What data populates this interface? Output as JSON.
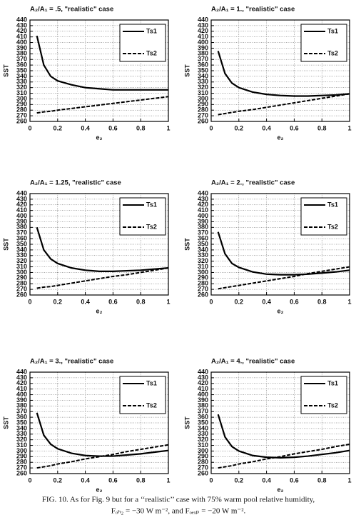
{
  "chart_data": [
    {
      "type": "line",
      "title": "A₂/A₁ = .5, \"realistic\" case",
      "xlabel": "e₂",
      "ylabel": "SST",
      "x": [
        0.05,
        0.1,
        0.15,
        0.2,
        0.3,
        0.4,
        0.5,
        0.6,
        0.7,
        0.8,
        0.9,
        1
      ],
      "series": [
        {
          "name": "Ts1",
          "color": "#000000",
          "dash": false,
          "values": [
            412,
            360,
            340,
            332,
            325,
            320,
            318,
            316,
            316,
            316,
            316,
            316
          ]
        },
        {
          "name": "Ts2",
          "color": "#000000",
          "dash": true,
          "values": [
            275,
            277,
            278,
            280,
            283,
            286,
            289,
            292,
            295,
            298,
            301,
            304
          ]
        }
      ],
      "xlim": [
        0,
        1
      ],
      "xticks": [
        0,
        0.2,
        0.4,
        0.6,
        0.8,
        1
      ],
      "ylim": [
        260,
        440
      ],
      "yticks": [
        260,
        270,
        280,
        290,
        300,
        310,
        320,
        330,
        340,
        350,
        360,
        370,
        380,
        390,
        400,
        410,
        420,
        430,
        440
      ],
      "grid": true,
      "legend": "upper right"
    },
    {
      "type": "line",
      "title": "A₂/A₁ = 1., \"realistic\" case",
      "xlabel": "e₂",
      "ylabel": "SST",
      "x": [
        0.05,
        0.1,
        0.15,
        0.2,
        0.3,
        0.4,
        0.5,
        0.6,
        0.7,
        0.8,
        0.9,
        1
      ],
      "series": [
        {
          "name": "Ts1",
          "color": "#000000",
          "dash": false,
          "values": [
            385,
            345,
            328,
            320,
            312,
            308,
            306,
            305,
            305,
            306,
            307,
            309
          ]
        },
        {
          "name": "Ts2",
          "color": "#000000",
          "dash": true,
          "values": [
            272,
            274,
            276,
            278,
            281,
            285,
            289,
            293,
            297,
            301,
            305,
            309
          ]
        }
      ],
      "xlim": [
        0,
        1
      ],
      "xticks": [
        0,
        0.2,
        0.4,
        0.6,
        0.8,
        1
      ],
      "ylim": [
        260,
        440
      ],
      "yticks": [
        260,
        270,
        280,
        290,
        300,
        310,
        320,
        330,
        340,
        350,
        360,
        370,
        380,
        390,
        400,
        410,
        420,
        430,
        440
      ],
      "grid": true,
      "legend": "upper right"
    },
    {
      "type": "line",
      "title": "A₂/A₁ = 1.25, \"realistic\" case",
      "xlabel": "e₂",
      "ylabel": "SST",
      "x": [
        0.05,
        0.1,
        0.15,
        0.2,
        0.3,
        0.4,
        0.5,
        0.6,
        0.7,
        0.8,
        0.9,
        1
      ],
      "series": [
        {
          "name": "Ts1",
          "color": "#000000",
          "dash": false,
          "values": [
            380,
            340,
            324,
            316,
            308,
            304,
            302,
            302,
            303,
            304,
            306,
            308
          ]
        },
        {
          "name": "Ts2",
          "color": "#000000",
          "dash": true,
          "values": [
            272,
            274,
            275,
            277,
            281,
            285,
            289,
            293,
            296,
            300,
            304,
            308
          ]
        }
      ],
      "xlim": [
        0,
        1
      ],
      "xticks": [
        0,
        0.2,
        0.4,
        0.6,
        0.8,
        1
      ],
      "ylim": [
        260,
        440
      ],
      "yticks": [
        260,
        270,
        280,
        290,
        300,
        310,
        320,
        330,
        340,
        350,
        360,
        370,
        380,
        390,
        400,
        410,
        420,
        430,
        440
      ],
      "grid": true,
      "legend": "upper right"
    },
    {
      "type": "line",
      "title": "A₂/A₁ = 2., \"realistic\" case",
      "xlabel": "e₂",
      "ylabel": "SST",
      "x": [
        0.05,
        0.1,
        0.15,
        0.2,
        0.3,
        0.4,
        0.5,
        0.6,
        0.7,
        0.8,
        0.9,
        1
      ],
      "series": [
        {
          "name": "Ts1",
          "color": "#000000",
          "dash": false,
          "values": [
            372,
            333,
            316,
            309,
            301,
            297,
            296,
            296,
            297,
            299,
            301,
            304
          ]
        },
        {
          "name": "Ts2",
          "color": "#000000",
          "dash": true,
          "values": [
            271,
            273,
            275,
            277,
            281,
            285,
            289,
            293,
            298,
            302,
            306,
            310
          ]
        }
      ],
      "xlim": [
        0,
        1
      ],
      "xticks": [
        0,
        0.2,
        0.4,
        0.6,
        0.8,
        1
      ],
      "ylim": [
        260,
        440
      ],
      "yticks": [
        260,
        270,
        280,
        290,
        300,
        310,
        320,
        330,
        340,
        350,
        360,
        370,
        380,
        390,
        400,
        410,
        420,
        430,
        440
      ],
      "grid": true,
      "legend": "upper right"
    },
    {
      "type": "line",
      "title": "A₂/A₁ = 3., \"realistic\" case",
      "xlabel": "e₂",
      "ylabel": "SST",
      "x": [
        0.05,
        0.1,
        0.15,
        0.2,
        0.3,
        0.4,
        0.5,
        0.6,
        0.7,
        0.8,
        0.9,
        1
      ],
      "series": [
        {
          "name": "Ts1",
          "color": "#000000",
          "dash": false,
          "values": [
            368,
            328,
            312,
            304,
            296,
            292,
            291,
            291,
            293,
            295,
            298,
            301
          ]
        },
        {
          "name": "Ts2",
          "color": "#000000",
          "dash": true,
          "values": [
            270,
            272,
            274,
            277,
            281,
            286,
            290,
            294,
            299,
            303,
            307,
            311
          ]
        }
      ],
      "xlim": [
        0,
        1
      ],
      "xticks": [
        0,
        0.2,
        0.4,
        0.6,
        0.8,
        1
      ],
      "ylim": [
        260,
        440
      ],
      "yticks": [
        260,
        270,
        280,
        290,
        300,
        310,
        320,
        330,
        340,
        350,
        360,
        370,
        380,
        390,
        400,
        410,
        420,
        430,
        440
      ],
      "grid": true,
      "legend": "upper right"
    },
    {
      "type": "line",
      "title": "A₂/A₁ = 4., \"realistic\" case",
      "xlabel": "e₂",
      "ylabel": "SST",
      "x": [
        0.05,
        0.1,
        0.15,
        0.2,
        0.3,
        0.4,
        0.5,
        0.6,
        0.7,
        0.8,
        0.9,
        1
      ],
      "series": [
        {
          "name": "Ts1",
          "color": "#000000",
          "dash": false,
          "values": [
            365,
            325,
            308,
            300,
            292,
            289,
            288,
            289,
            291,
            294,
            297,
            301
          ]
        },
        {
          "name": "Ts2",
          "color": "#000000",
          "dash": true,
          "values": [
            270,
            272,
            274,
            277,
            281,
            286,
            290,
            295,
            299,
            303,
            308,
            312
          ]
        }
      ],
      "xlim": [
        0,
        1
      ],
      "xticks": [
        0,
        0.2,
        0.4,
        0.6,
        0.8,
        1
      ],
      "ylim": [
        260,
        440
      ],
      "yticks": [
        260,
        270,
        280,
        290,
        300,
        310,
        320,
        330,
        340,
        350,
        360,
        370,
        380,
        390,
        400,
        410,
        420,
        430,
        440
      ],
      "grid": true,
      "legend": "upper right"
    }
  ],
  "caption": [
    "FIG. 10. As for Fig. 9 but for a ‘‘realistic’’ case with 75% warm pool relative humidity,",
    "Fₒₕ₂ = −30 W m⁻², and Fₒₑₓₚ = −20 W m⁻²."
  ]
}
